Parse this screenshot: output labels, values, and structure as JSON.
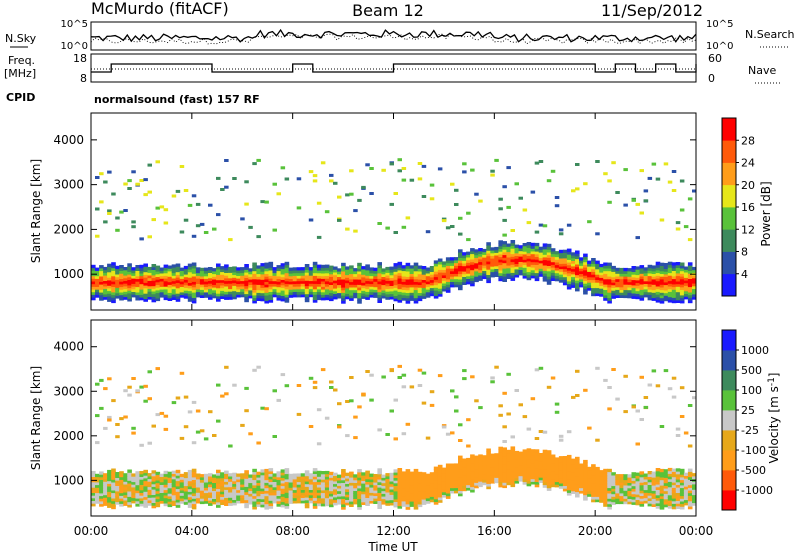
{
  "header": {
    "title": "McMurdo (fitACF)",
    "beam": "Beam 12",
    "date": "11/Sep/2012"
  },
  "noise_panel": {
    "left_label": "N.Sky",
    "right_label": "N.Search",
    "left_ticks": [
      "10^5",
      "10^0"
    ],
    "right_ticks": [
      "10^5",
      "10^0"
    ]
  },
  "freq_panel": {
    "left_label_1": "Freq.",
    "left_label_2": "[MHz]",
    "right_label": "Nave",
    "left_ticks": [
      "18",
      "8"
    ],
    "right_ticks": [
      "60",
      "0"
    ]
  },
  "cpid": {
    "label": "CPID",
    "value": "normalsound (fast) 157 RF"
  },
  "time_axis": {
    "xlabel": "Time UT",
    "ticks": [
      "00:00",
      "04:00",
      "08:00",
      "12:00",
      "16:00",
      "20:00",
      "00:00"
    ]
  },
  "colors": {
    "power": [
      "#1a1aff",
      "#2b50a8",
      "#3d8a5c",
      "#59c23a",
      "#e6e61a",
      "#ff9d1a",
      "#ff5a0a",
      "#ff0000"
    ],
    "velocity": [
      "#ff0000",
      "#ff5a0a",
      "#ff9d1a",
      "#e6a81a",
      "#c8c8c8",
      "#59c23a",
      "#3d8a5c",
      "#2b50a8",
      "#1a1aff"
    ]
  },
  "chart_data": [
    {
      "type": "heatmap",
      "name": "power",
      "ylabel": "Slant Range [km]",
      "xlabel": "Time UT",
      "ylim": [
        200,
        4600
      ],
      "yticks": [
        "1000",
        "2000",
        "3000",
        "4000"
      ],
      "colorbar_label": "Power [dB]",
      "colorbar_ticks": [
        "4",
        "8",
        "12",
        "16",
        "20",
        "24",
        "28"
      ]
    },
    {
      "type": "heatmap",
      "name": "velocity",
      "ylabel": "Slant Range [km]",
      "xlabel": "Time UT",
      "ylim": [
        200,
        4600
      ],
      "yticks": [
        "1000",
        "2000",
        "3000",
        "4000"
      ],
      "colorbar_label": "Velocity [m s^-1]",
      "colorbar_ticks": [
        "1000",
        "500",
        "100",
        "25",
        "-25",
        "-100",
        "-500",
        "-1000"
      ]
    }
  ]
}
